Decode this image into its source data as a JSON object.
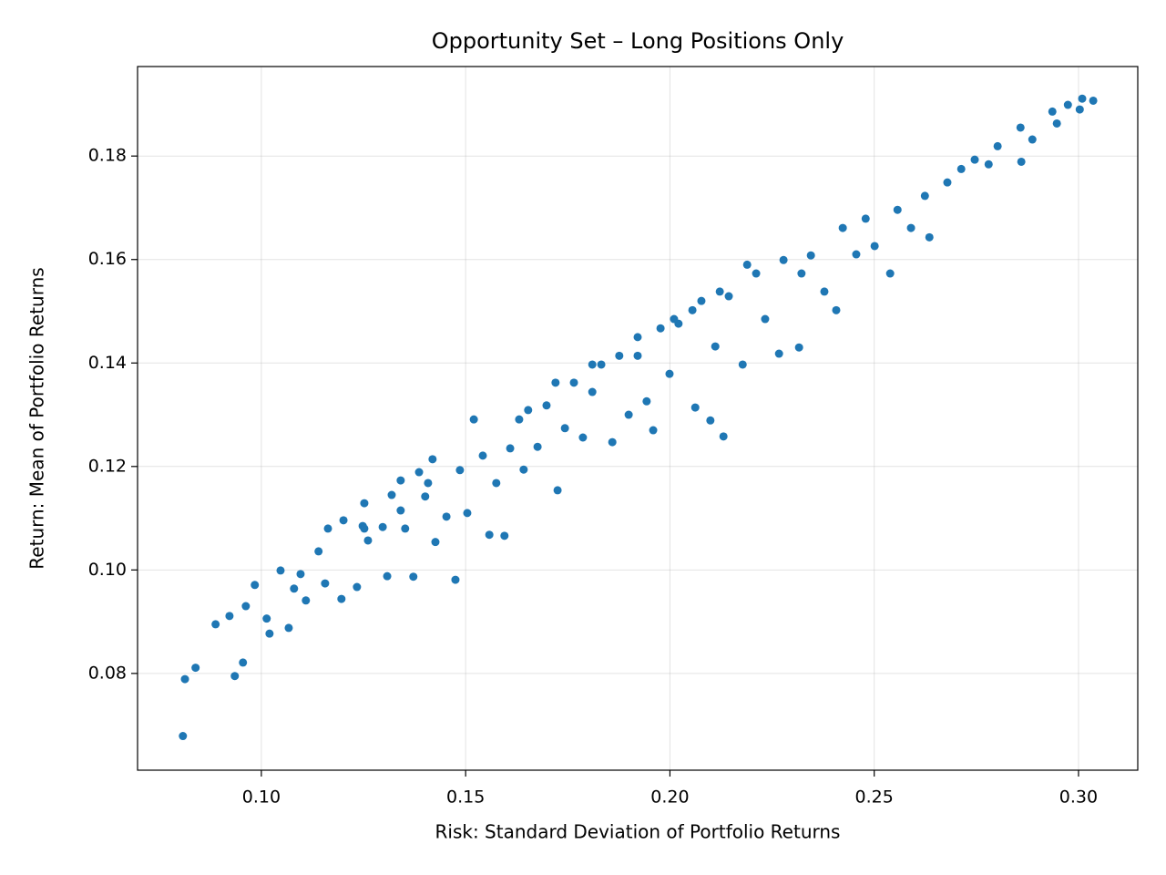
{
  "chart_data": {
    "type": "scatter",
    "title": "Opportunity Set – Long Positions Only",
    "x_label": "Risk: Standard Deviation of Portfolio Returns",
    "y_label": "Return: Mean of Portfolio Returns",
    "color": "#1f77b4",
    "grid": true,
    "xlim": [
      0.0697,
      0.3145
    ],
    "ylim": [
      0.0613,
      0.1973
    ],
    "xticks": [
      {
        "value": 0.1,
        "label": "0.10"
      },
      0.15,
      {
        "value": 0.2,
        "label": "0.20"
      },
      0.25,
      {
        "value": 0.3,
        "label": "0.30"
      }
    ],
    "yticks": [
      0.08,
      {
        "value": 0.1,
        "label": "0.10"
      },
      0.12,
      0.14,
      0.16,
      0.18
    ],
    "x": [
      0.0808,
      0.0813,
      0.0839,
      0.0888,
      0.0922,
      0.0935,
      0.0955,
      0.0962,
      0.0984,
      0.1013,
      0.102,
      0.1047,
      0.1067,
      0.108,
      0.1096,
      0.1109,
      0.114,
      0.1156,
      0.1163,
      0.1196,
      0.1201,
      0.1234,
      0.1248,
      0.1252,
      0.1261,
      0.1297,
      0.1308,
      0.1319,
      0.1341,
      0.1352,
      0.1372,
      0.1386,
      0.1401,
      0.1419,
      0.1426,
      0.1453,
      0.1475,
      0.1486,
      0.1504,
      0.1542,
      0.1558,
      0.1575,
      0.1595,
      0.1609,
      0.1642,
      0.1653,
      0.1676,
      0.1698,
      0.1725,
      0.1743,
      0.1765,
      0.1787,
      0.181,
      0.1832,
      0.1859,
      0.1876,
      0.1899,
      0.1921,
      0.1943,
      0.1959,
      0.1977,
      0.1999,
      0.2021,
      0.2062,
      0.2077,
      0.2099,
      0.2111,
      0.2131,
      0.2144,
      0.2178,
      0.2211,
      0.2233,
      0.2267,
      0.2278,
      0.2316,
      0.2345,
      0.2378,
      0.2407,
      0.2423,
      0.2456,
      0.2479,
      0.2501,
      0.2539,
      0.2557,
      0.259,
      0.2624,
      0.2635,
      0.2679,
      0.2713,
      0.2746,
      0.278,
      0.2802,
      0.2858,
      0.286,
      0.2887,
      0.2936,
      0.2947,
      0.2974,
      0.3003,
      0.3009,
      0.3036,
      0.152,
      0.1631,
      0.172,
      0.181,
      0.1921,
      0.201,
      0.2055,
      0.2122,
      0.2189,
      0.2322,
      0.1408,
      0.1341,
      0.1252
    ],
    "values": [
      0.0679,
      0.0789,
      0.0811,
      0.0895,
      0.0911,
      0.0795,
      0.0821,
      0.093,
      0.0971,
      0.0906,
      0.0877,
      0.0999,
      0.0888,
      0.0964,
      0.0992,
      0.0941,
      0.1036,
      0.0974,
      0.108,
      0.0944,
      0.1096,
      0.0967,
      0.1085,
      0.1129,
      0.1057,
      0.1083,
      0.0988,
      0.1145,
      0.1173,
      0.108,
      0.0987,
      0.1189,
      0.1142,
      0.1214,
      0.1054,
      0.1103,
      0.0981,
      0.1193,
      0.111,
      0.1221,
      0.1068,
      0.1168,
      0.1066,
      0.1235,
      0.1194,
      0.1309,
      0.1238,
      0.1318,
      0.1154,
      0.1274,
      0.1362,
      0.1256,
      0.1344,
      0.1397,
      0.1247,
      0.1414,
      0.13,
      0.145,
      0.1326,
      0.127,
      0.1467,
      0.1379,
      0.1476,
      0.1314,
      0.152,
      0.1289,
      0.1432,
      0.1258,
      0.1529,
      0.1397,
      0.1573,
      0.1485,
      0.1418,
      0.1599,
      0.143,
      0.1608,
      0.1538,
      0.1502,
      0.1661,
      0.161,
      0.1679,
      0.1626,
      0.1573,
      0.1696,
      0.1661,
      0.1723,
      0.1643,
      0.1749,
      0.1775,
      0.1793,
      0.1784,
      0.1819,
      0.1855,
      0.1789,
      0.1832,
      0.1886,
      0.1863,
      0.1899,
      0.189,
      0.1911,
      0.1907,
      0.1291,
      0.1291,
      0.1362,
      0.1397,
      0.1414,
      0.1485,
      0.1502,
      0.1538,
      0.159,
      0.1573,
      0.1168,
      0.1115,
      0.108
    ]
  }
}
